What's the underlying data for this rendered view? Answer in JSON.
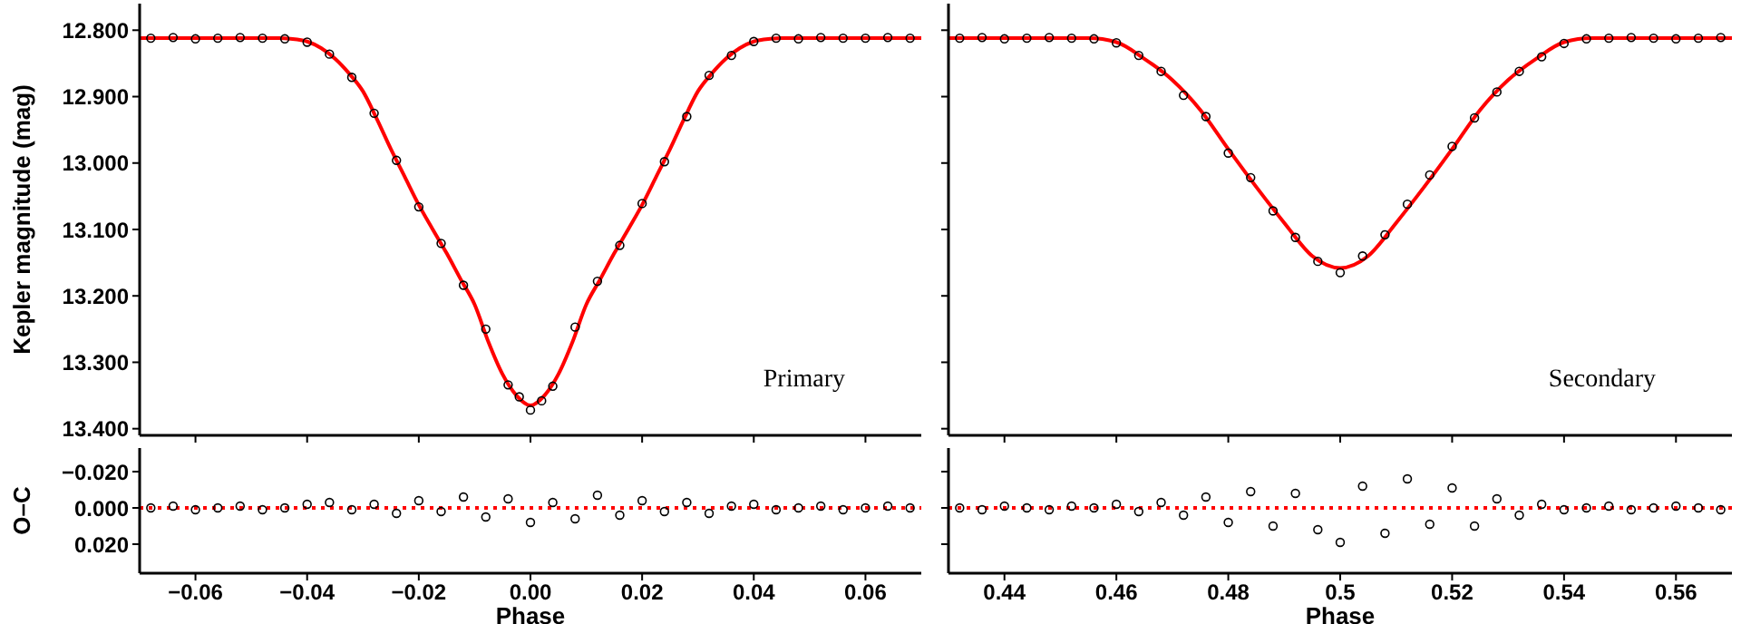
{
  "chart_data": [
    {
      "type": "scatter",
      "ylabel": "Kepler magnitude (mag)",
      "annotations": [
        "Primary"
      ],
      "xlim": [
        -0.07,
        0.07
      ],
      "xticks": [
        -0.06,
        -0.04,
        -0.02,
        0,
        0.02,
        0.04,
        0.06
      ],
      "ylim": [
        13.41,
        12.76
      ],
      "yticks": [
        {
          "value": 12.8,
          "label": "12.800"
        },
        {
          "value": 12.9,
          "label": "12.900"
        },
        {
          "value": 13,
          "label": "13.000"
        },
        {
          "value": 13.1,
          "label": "13.100"
        },
        {
          "value": 13.2,
          "label": "13.200"
        },
        {
          "value": 13.3,
          "label": "13.300"
        },
        {
          "value": 13.4,
          "label": "13.400"
        }
      ],
      "tick_labels": "y",
      "series": [
        {
          "type": "scatter",
          "marker": "circle",
          "color": "#000000",
          "x": [
            -0.068,
            -0.064,
            -0.06,
            -0.056,
            -0.052,
            -0.048,
            -0.044,
            -0.04,
            -0.036,
            -0.032,
            -0.028,
            -0.024,
            -0.02,
            -0.016,
            -0.012,
            -0.008,
            -0.004,
            -0.002,
            0,
            0.002,
            0.004,
            0.008,
            0.012,
            0.016,
            0.02,
            0.024,
            0.028,
            0.032,
            0.036,
            0.04,
            0.044,
            0.048,
            0.052,
            0.056,
            0.06,
            0.064,
            0.068
          ],
          "values": [
            12.812,
            12.811,
            12.813,
            12.812,
            12.811,
            12.812,
            12.813,
            12.818,
            12.836,
            12.871,
            12.925,
            12.996,
            13.066,
            13.121,
            13.184,
            13.25,
            13.334,
            13.352,
            13.372,
            13.358,
            13.336,
            13.247,
            13.178,
            13.124,
            13.061,
            12.998,
            12.93,
            12.868,
            12.838,
            12.817,
            12.812,
            12.813,
            12.811,
            12.812,
            12.812,
            12.811,
            12.812
          ]
        },
        {
          "type": "line",
          "marker": "none",
          "line_style": "solid",
          "color": "#ff0000",
          "x": [
            -0.07,
            -0.045,
            -0.043,
            -0.04,
            -0.0375,
            -0.035,
            -0.0325,
            -0.03,
            -0.0275,
            -0.025,
            -0.0225,
            -0.02,
            -0.0175,
            -0.015,
            -0.0125,
            -0.01,
            -0.0075,
            -0.005,
            -0.0025,
            0,
            0.0025,
            0.005,
            0.0075,
            0.01,
            0.0125,
            0.015,
            0.0175,
            0.02,
            0.0225,
            0.025,
            0.0275,
            0.03,
            0.0325,
            0.035,
            0.0375,
            0.04,
            0.043,
            0.045,
            0.07
          ],
          "values": [
            12.812,
            12.812,
            12.813,
            12.817,
            12.827,
            12.843,
            12.865,
            12.892,
            12.934,
            12.979,
            13.021,
            13.063,
            13.1,
            13.136,
            13.175,
            13.213,
            13.27,
            13.318,
            13.35,
            13.365,
            13.35,
            13.318,
            13.27,
            13.213,
            13.175,
            13.136,
            13.1,
            13.063,
            13.021,
            12.979,
            12.934,
            12.892,
            12.865,
            12.843,
            12.827,
            12.817,
            12.813,
            12.812,
            12.812
          ]
        }
      ]
    },
    {
      "type": "scatter",
      "annotations": [
        "Secondary"
      ],
      "xlim": [
        0.43,
        0.57
      ],
      "xticks": [
        0.44,
        0.46,
        0.48,
        0.5,
        0.52,
        0.54,
        0.56
      ],
      "ylim": [
        13.41,
        12.76
      ],
      "yticks": [
        12.8,
        12.9,
        13,
        13.1,
        13.2,
        13.3,
        13.4
      ],
      "tick_labels": false,
      "series": [
        {
          "type": "scatter",
          "marker": "circle",
          "color": "#000000",
          "x": [
            0.432,
            0.436,
            0.44,
            0.444,
            0.448,
            0.452,
            0.456,
            0.46,
            0.464,
            0.468,
            0.472,
            0.476,
            0.48,
            0.484,
            0.488,
            0.492,
            0.496,
            0.5,
            0.504,
            0.508,
            0.512,
            0.516,
            0.52,
            0.524,
            0.528,
            0.532,
            0.536,
            0.54,
            0.544,
            0.548,
            0.552,
            0.556,
            0.56,
            0.564,
            0.568
          ],
          "values": [
            12.812,
            12.811,
            12.813,
            12.812,
            12.811,
            12.812,
            12.813,
            12.819,
            12.838,
            12.862,
            12.898,
            12.93,
            12.985,
            13.022,
            13.072,
            13.112,
            13.148,
            13.165,
            13.14,
            13.108,
            13.062,
            13.018,
            12.975,
            12.932,
            12.893,
            12.862,
            12.84,
            12.82,
            12.813,
            12.812,
            12.811,
            12.812,
            12.813,
            12.812,
            12.811
          ]
        },
        {
          "type": "line",
          "marker": "none",
          "line_style": "solid",
          "color": "#ff0000",
          "x": [
            0.43,
            0.455,
            0.46,
            0.465,
            0.47,
            0.475,
            0.48,
            0.485,
            0.49,
            0.495,
            0.5,
            0.505,
            0.51,
            0.515,
            0.52,
            0.525,
            0.53,
            0.535,
            0.54,
            0.545,
            0.57
          ],
          "values": [
            12.812,
            12.812,
            12.818,
            12.843,
            12.875,
            12.92,
            12.979,
            13.036,
            13.09,
            13.14,
            13.158,
            13.14,
            13.09,
            13.036,
            12.979,
            12.92,
            12.875,
            12.843,
            12.818,
            12.812,
            12.812
          ]
        }
      ]
    },
    {
      "type": "scatter",
      "xlabel": "Phase",
      "ylabel": "O–C",
      "xlim": [
        -0.07,
        0.07
      ],
      "xticks": [
        {
          "value": -0.06,
          "label": "−0.06"
        },
        {
          "value": -0.04,
          "label": "−0.04"
        },
        {
          "value": -0.02,
          "label": "−0.02"
        },
        {
          "value": 0,
          "label": "0.00"
        },
        {
          "value": 0.02,
          "label": "0.02"
        },
        {
          "value": 0.04,
          "label": "0.04"
        },
        {
          "value": 0.06,
          "label": "0.06"
        }
      ],
      "ylim": [
        0.036,
        -0.033
      ],
      "yticks": [
        {
          "value": -0.02,
          "label": "−0.020"
        },
        {
          "value": 0,
          "label": "0.000"
        },
        {
          "value": 0.02,
          "label": "0.020"
        }
      ],
      "series": [
        {
          "type": "scatter",
          "marker": "circle",
          "color": "#000000",
          "x": [
            -0.068,
            -0.064,
            -0.06,
            -0.056,
            -0.052,
            -0.048,
            -0.044,
            -0.04,
            -0.036,
            -0.032,
            -0.028,
            -0.024,
            -0.02,
            -0.016,
            -0.012,
            -0.008,
            -0.004,
            0,
            0.004,
            0.008,
            0.012,
            0.016,
            0.02,
            0.024,
            0.028,
            0.032,
            0.036,
            0.04,
            0.044,
            0.048,
            0.052,
            0.056,
            0.06,
            0.064,
            0.068
          ],
          "values": [
            0,
            -0.001,
            0.001,
            0,
            -0.001,
            0.001,
            0,
            -0.002,
            -0.003,
            0.001,
            -0.002,
            0.003,
            -0.004,
            0.002,
            -0.006,
            0.005,
            -0.005,
            0.008,
            -0.003,
            0.006,
            -0.007,
            0.004,
            -0.004,
            0.002,
            -0.003,
            0.003,
            -0.001,
            -0.002,
            0.001,
            0,
            -0.001,
            0.001,
            0,
            -0.001,
            0
          ]
        },
        {
          "type": "line",
          "marker": "none",
          "line_style": "dotted",
          "color": "#ff0000",
          "x": [
            -0.07,
            0.07
          ],
          "values": [
            0,
            0
          ]
        }
      ]
    },
    {
      "type": "scatter",
      "xlabel": "Phase",
      "xlim": [
        0.43,
        0.57
      ],
      "xticks": [
        0.44,
        0.46,
        0.48,
        0.5,
        0.52,
        0.54,
        0.56
      ],
      "ylim": [
        0.036,
        -0.033
      ],
      "yticks": [
        -0.02,
        0,
        0.02
      ],
      "tick_labels": "x",
      "series": [
        {
          "type": "scatter",
          "marker": "circle",
          "color": "#000000",
          "x": [
            0.432,
            0.436,
            0.44,
            0.444,
            0.448,
            0.452,
            0.456,
            0.46,
            0.464,
            0.468,
            0.472,
            0.476,
            0.48,
            0.484,
            0.488,
            0.492,
            0.496,
            0.5,
            0.504,
            0.508,
            0.512,
            0.516,
            0.52,
            0.524,
            0.528,
            0.532,
            0.536,
            0.54,
            0.544,
            0.548,
            0.552,
            0.556,
            0.56,
            0.564,
            0.568
          ],
          "values": [
            0,
            0.001,
            -0.001,
            0,
            0.001,
            -0.001,
            0,
            -0.002,
            0.002,
            -0.003,
            0.004,
            -0.006,
            0.008,
            -0.009,
            0.01,
            -0.008,
            0.012,
            0.019,
            -0.012,
            0.014,
            -0.016,
            0.009,
            -0.011,
            0.01,
            -0.005,
            0.004,
            -0.002,
            0.001,
            0,
            -0.001,
            0.001,
            0,
            -0.001,
            0,
            0.001
          ]
        },
        {
          "type": "line",
          "marker": "none",
          "line_style": "dotted",
          "color": "#ff0000",
          "x": [
            0.43,
            0.57
          ],
          "values": [
            0,
            0
          ]
        }
      ]
    }
  ]
}
